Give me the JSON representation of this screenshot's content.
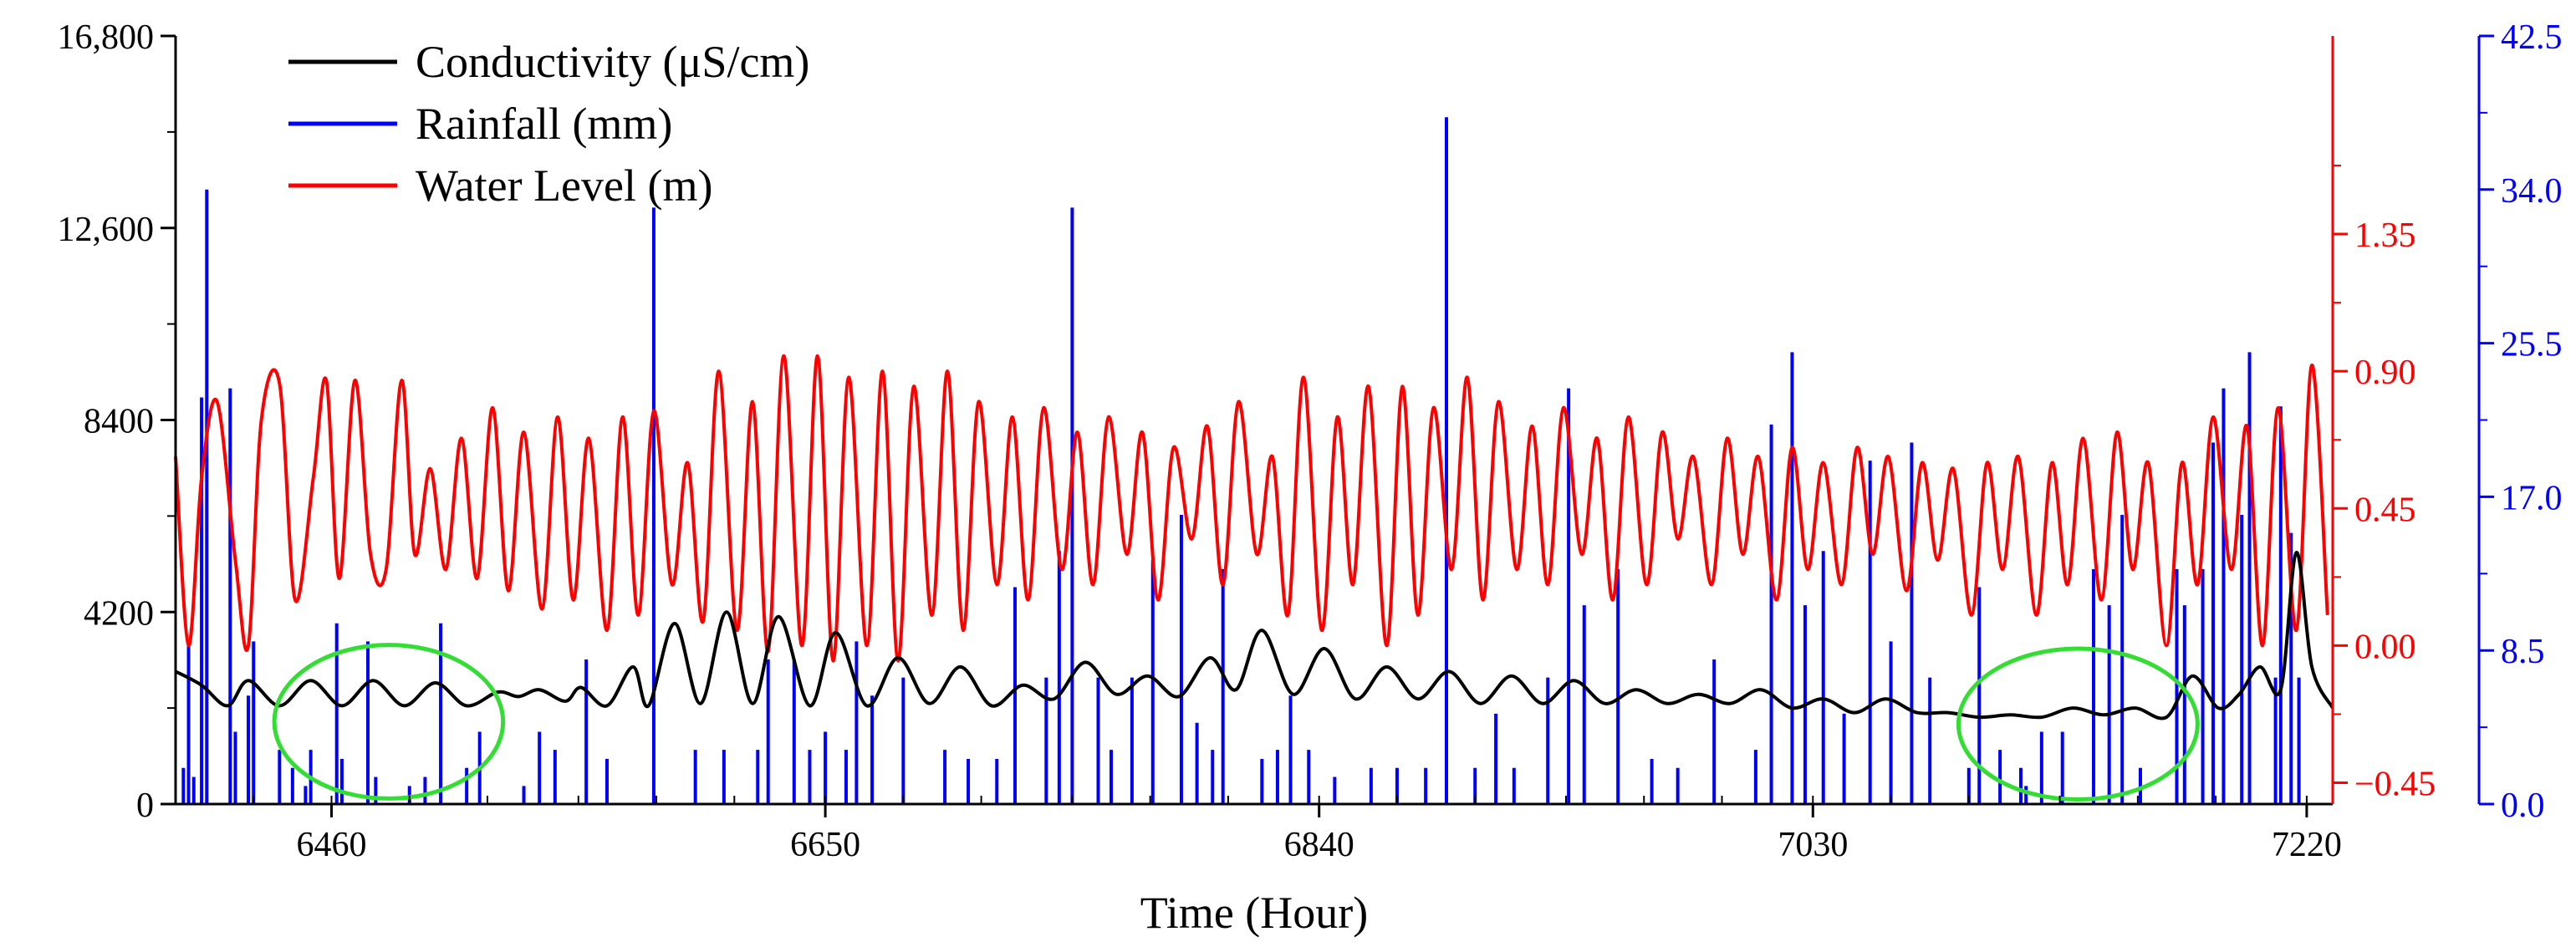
{
  "chart_data": {
    "type": "line",
    "title": "",
    "xlabel": "Time (Hour)",
    "xlim": [
      6400,
      7230
    ],
    "x_ticks": [
      6460,
      6650,
      6840,
      7030,
      7220
    ],
    "x_minor_ticks": [
      6430,
      6460,
      6490,
      6520,
      6555,
      6585,
      6615,
      6650,
      6680,
      6710,
      6745,
      6775,
      6805,
      6840,
      6870,
      6900,
      6935,
      6965,
      6995,
      7030,
      7060,
      7090,
      7125,
      7155,
      7185,
      7220
    ],
    "y_left": {
      "label": "",
      "color": "#000000",
      "range": [
        0,
        16800
      ],
      "ticks": [
        0,
        4200,
        8400,
        12600,
        16800
      ],
      "tick_labels": [
        "0",
        "4200",
        "8400",
        "12,600",
        "16,800"
      ]
    },
    "y_right_level": {
      "label": "",
      "color": "#ff0000",
      "range": [
        -0.52,
        2.0
      ],
      "ticks": [
        -0.45,
        0.0,
        0.45,
        0.9,
        1.35
      ],
      "tick_labels": [
        "−0.45",
        "0.00",
        "0.45",
        "0.90",
        "1.35"
      ]
    },
    "y_right_rain": {
      "label": "",
      "color": "#0000ff",
      "range": [
        0,
        42.5
      ],
      "ticks": [
        0,
        8.5,
        17,
        25.5,
        34,
        42.5
      ],
      "tick_labels": [
        "0.0",
        "8.5",
        "17.0",
        "25.5",
        "34.0",
        "42.5"
      ]
    },
    "legend": {
      "position": "top-left",
      "entries": [
        {
          "label": "Conductivity (μS/cm)",
          "color": "#000000"
        },
        {
          "label": "Rainfall (mm)",
          "color": "#0000ff"
        },
        {
          "label": "Water Level (m)",
          "color": "#ff0000"
        }
      ]
    },
    "series": [
      {
        "name": "Conductivity (μS/cm)",
        "color": "#000000",
        "axis": "left",
        "x": [
          6400,
          6410,
          6420,
          6428,
          6440,
          6452,
          6464,
          6476,
          6488,
          6500,
          6512,
          6524,
          6532,
          6540,
          6550,
          6556,
          6566,
          6576,
          6582,
          6592,
          6602,
          6612,
          6622,
          6632,
          6644,
          6654,
          6666,
          6678,
          6690,
          6702,
          6714,
          6726,
          6738,
          6750,
          6762,
          6774,
          6786,
          6798,
          6808,
          6818,
          6830,
          6842,
          6854,
          6866,
          6878,
          6890,
          6902,
          6914,
          6926,
          6938,
          6950,
          6962,
          6974,
          6986,
          6998,
          7010,
          7022,
          7034,
          7046,
          7058,
          7070,
          7082,
          7094,
          7106,
          7118,
          7130,
          7142,
          7154,
          7166,
          7176,
          7186,
          7194,
          7202,
          7210,
          7216,
          7222,
          7230
        ],
        "values": [
          2900,
          2600,
          2150,
          2700,
          2150,
          2700,
          2150,
          2700,
          2150,
          2650,
          2150,
          2450,
          2350,
          2500,
          2250,
          2550,
          2150,
          3000,
          2150,
          3950,
          2200,
          4200,
          2200,
          4100,
          2150,
          3750,
          2150,
          3200,
          2200,
          3000,
          2150,
          2600,
          2300,
          3100,
          2400,
          2800,
          2350,
          3200,
          2500,
          3800,
          2400,
          3400,
          2300,
          3000,
          2300,
          2900,
          2200,
          2800,
          2200,
          2700,
          2200,
          2500,
          2200,
          2400,
          2200,
          2500,
          2100,
          2300,
          2000,
          2300,
          2000,
          2000,
          1900,
          1950,
          1900,
          2100,
          1950,
          2100,
          1900,
          2800,
          2100,
          2400,
          3000,
          2500,
          5500,
          3000,
          2100
        ]
      },
      {
        "name": "Water Level (m)",
        "color": "#ff0000",
        "axis": "right_level",
        "x": [
          6400,
          6405,
          6410,
          6416,
          6423,
          6428,
          6433,
          6440,
          6446,
          6453,
          6458,
          6463,
          6469,
          6475,
          6481,
          6487,
          6492,
          6498,
          6504,
          6510,
          6516,
          6522,
          6528,
          6534,
          6541,
          6547,
          6553,
          6559,
          6566,
          6572,
          6578,
          6584,
          6591,
          6597,
          6603,
          6609,
          6616,
          6622,
          6628,
          6634,
          6641,
          6647,
          6653,
          6659,
          6666,
          6672,
          6678,
          6684,
          6691,
          6697,
          6703,
          6709,
          6716,
          6722,
          6728,
          6734,
          6741,
          6747,
          6753,
          6759,
          6766,
          6772,
          6778,
          6784,
          6791,
          6797,
          6803,
          6809,
          6816,
          6822,
          6828,
          6834,
          6841,
          6847,
          6853,
          6859,
          6866,
          6872,
          6878,
          6884,
          6891,
          6897,
          6903,
          6909,
          6916,
          6922,
          6928,
          6934,
          6941,
          6947,
          6953,
          6959,
          6966,
          6972,
          6978,
          6984,
          6991,
          6997,
          7003,
          7009,
          7016,
          7022,
          7028,
          7034,
          7041,
          7047,
          7053,
          7059,
          7066,
          7072,
          7078,
          7084,
          7091,
          7097,
          7103,
          7109,
          7116,
          7122,
          7128,
          7134,
          7141,
          7147,
          7153,
          7159,
          7166,
          7172,
          7178,
          7184,
          7191,
          7197,
          7203,
          7209,
          7216,
          7222,
          7228
        ],
        "values": [
          0.62,
          0.0,
          0.55,
          0.8,
          0.28,
          0.0,
          0.74,
          0.86,
          0.15,
          0.55,
          0.87,
          0.22,
          0.87,
          0.3,
          0.25,
          0.87,
          0.3,
          0.58,
          0.25,
          0.68,
          0.22,
          0.78,
          0.18,
          0.7,
          0.12,
          0.75,
          0.15,
          0.68,
          0.05,
          0.75,
          0.1,
          0.77,
          0.2,
          0.6,
          0.08,
          0.9,
          0.05,
          0.8,
          -0.02,
          0.95,
          0.0,
          0.95,
          -0.05,
          0.88,
          0.0,
          0.9,
          -0.05,
          0.85,
          0.1,
          0.9,
          0.05,
          0.8,
          0.2,
          0.75,
          0.15,
          0.78,
          0.25,
          0.7,
          0.2,
          0.75,
          0.3,
          0.7,
          0.15,
          0.65,
          0.35,
          0.72,
          0.2,
          0.8,
          0.3,
          0.62,
          0.1,
          0.88,
          0.05,
          0.75,
          0.2,
          0.85,
          0.0,
          0.85,
          0.1,
          0.78,
          0.25,
          0.88,
          0.15,
          0.8,
          0.25,
          0.72,
          0.2,
          0.78,
          0.3,
          0.68,
          0.15,
          0.75,
          0.2,
          0.7,
          0.35,
          0.62,
          0.2,
          0.68,
          0.3,
          0.62,
          0.15,
          0.65,
          0.25,
          0.6,
          0.2,
          0.65,
          0.3,
          0.62,
          0.18,
          0.6,
          0.28,
          0.58,
          0.1,
          0.6,
          0.25,
          0.62,
          0.1,
          0.6,
          0.2,
          0.68,
          0.15,
          0.7,
          0.25,
          0.6,
          0.0,
          0.6,
          0.2,
          0.75,
          0.25,
          0.72,
          0.0,
          0.78,
          0.05,
          0.92,
          0.1
        ]
      }
    ],
    "bars": {
      "name": "Rainfall (mm)",
      "color": "#0000ff",
      "axis": "right_rain",
      "x": [
        6403,
        6405,
        6407,
        6410,
        6412,
        6421,
        6423,
        6428,
        6430,
        6440,
        6445,
        6450,
        6452,
        6462,
        6464,
        6474,
        6477,
        6490,
        6496,
        6502,
        6512,
        6517,
        6534,
        6540,
        6546,
        6558,
        6566,
        6584,
        6600,
        6611,
        6624,
        6628,
        6638,
        6644,
        6650,
        6658,
        6662,
        6668,
        6680,
        6696,
        6705,
        6716,
        6723,
        6735,
        6740,
        6745,
        6755,
        6760,
        6768,
        6776,
        6787,
        6793,
        6799,
        6803,
        6818,
        6824,
        6829,
        6836,
        6846,
        6860,
        6870,
        6881,
        6889,
        6900,
        6908,
        6915,
        6928,
        6936,
        6942,
        6955,
        6968,
        6978,
        6992,
        7008,
        7014,
        7022,
        7027,
        7034,
        7042,
        7052,
        7060,
        7068,
        7075,
        7090,
        7094,
        7102,
        7110,
        7112,
        7118,
        7126,
        7138,
        7144,
        7149,
        7156,
        7170,
        7173,
        7180,
        7184,
        7188,
        7195,
        7198,
        7208,
        7210,
        7214,
        7217
      ],
      "values": [
        2.0,
        9.0,
        1.5,
        22.5,
        34.0,
        23.0,
        4.0,
        6.0,
        9.0,
        3.0,
        2.0,
        1.0,
        3.0,
        10.0,
        2.5,
        9.0,
        1.5,
        1.0,
        1.5,
        10.0,
        2.0,
        4.0,
        1.0,
        4.0,
        3.0,
        8.0,
        2.5,
        33.0,
        3.0,
        3.0,
        3.0,
        8.0,
        8.0,
        3.0,
        4.0,
        3.0,
        9.0,
        6.0,
        7.0,
        3.0,
        2.5,
        2.5,
        12.0,
        7.0,
        14.0,
        33.0,
        7.0,
        3.0,
        7.0,
        13.5,
        16.0,
        4.5,
        3.0,
        13.0,
        2.5,
        3.0,
        6.0,
        3.0,
        1.5,
        2.0,
        2.0,
        2.0,
        38.0,
        2.0,
        5.0,
        2.0,
        7.0,
        23.0,
        11.0,
        13.0,
        2.5,
        2.0,
        8.0,
        3.0,
        21.0,
        25.0,
        11.0,
        14.0,
        5.0,
        19.0,
        9.0,
        20.0,
        7.0,
        2.0,
        12.0,
        3.0,
        2.0,
        1.0,
        4.0,
        4.0,
        13.0,
        11.0,
        16.0,
        2.0,
        13.0,
        11.0,
        13.0,
        20.0,
        23.0,
        16.0,
        25.0,
        7.0,
        22.0,
        15.0,
        7.0
      ]
    },
    "annotations": [
      {
        "type": "ellipse",
        "color": "#33dd33",
        "x_center": 6482,
        "y_center": 1800,
        "x_radius": 44,
        "y_radius": 1680
      },
      {
        "type": "ellipse",
        "color": "#33dd33",
        "x_center": 7132,
        "y_center": 1750,
        "x_radius": 46,
        "y_radius": 1650
      }
    ]
  }
}
